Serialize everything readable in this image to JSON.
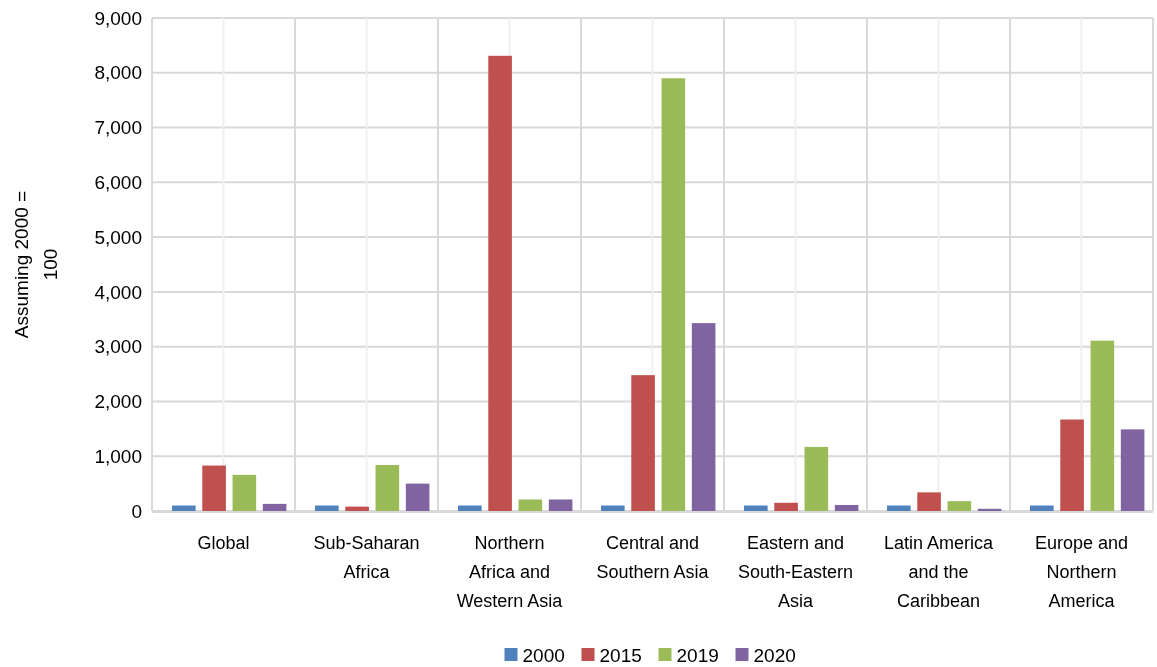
{
  "chart_data": {
    "type": "bar",
    "ylabel": "Assuming 2000 = 100",
    "categories": [
      "Global",
      "Sub-Saharan Africa",
      "Northern Africa and Western Asia",
      "Central and Southern Asia",
      "Eastern and South-Eastern Asia",
      "Latin America and the Caribbean",
      "Europe and Northern America"
    ],
    "series": [
      {
        "name": "2000",
        "color": "#4f81bd",
        "values": [
          100,
          100,
          100,
          100,
          100,
          100,
          100
        ]
      },
      {
        "name": "2015",
        "color": "#c0504d",
        "values": [
          830,
          80,
          8310,
          2480,
          150,
          340,
          1670
        ]
      },
      {
        "name": "2019",
        "color": "#9bbb59",
        "values": [
          660,
          840,
          210,
          7900,
          1170,
          180,
          3110
        ]
      },
      {
        "name": "2020",
        "color": "#8064a2",
        "values": [
          130,
          500,
          210,
          3430,
          110,
          40,
          1490
        ]
      }
    ],
    "ylim": [
      0,
      9000
    ],
    "yticks": [
      {
        "value": 0,
        "label": "0"
      },
      {
        "value": 1000,
        "label": "1,000"
      },
      {
        "value": 2000,
        "label": "2,000"
      },
      {
        "value": 3000,
        "label": "3,000"
      },
      {
        "value": 4000,
        "label": "4,000"
      },
      {
        "value": 5000,
        "label": "5,000"
      },
      {
        "value": 6000,
        "label": "6,000"
      },
      {
        "value": 7000,
        "label": "7,000"
      },
      {
        "value": 8000,
        "label": "8,000"
      },
      {
        "value": 9000,
        "label": "9,000"
      }
    ],
    "grid": true,
    "legend": "bottom"
  }
}
